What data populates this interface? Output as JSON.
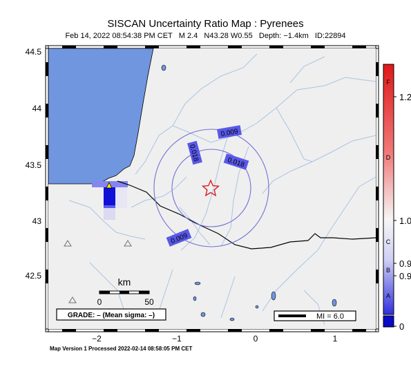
{
  "header": {
    "title": "SISCAN Uncertainty Ratio Map : Pyrenees",
    "subtitle": "Feb 14, 2022 08:54:38 PM CET   M 2.4   N43.28 W0.55   Depth: −1.4km   ID:22894"
  },
  "map": {
    "lat_labels": [
      "44.5",
      "44",
      "43.5",
      "43",
      "42.5"
    ],
    "lon_labels": [
      "−2",
      "−1",
      "0",
      "1"
    ],
    "contours": [
      {
        "label": "0.009"
      },
      {
        "label": "0.018"
      },
      {
        "label": "0.018"
      },
      {
        "label": "0.009"
      }
    ],
    "epicenter": {
      "symbol": "star",
      "color": "#d62020"
    },
    "scale_bar": {
      "unit": "km",
      "start": "0",
      "end": "50"
    },
    "grade_box": "GRADE: – (Mean sigma: –)",
    "mi_legend": "MI = 6.0"
  },
  "colorbar": {
    "letter_labels": [
      "F",
      "D",
      "C",
      "B",
      "A"
    ],
    "value_labels": [
      "1.2",
      "1.0",
      "0.9",
      "0.9",
      "0"
    ],
    "colors": {
      "top": "#e82020",
      "middle": "#f4f4f4",
      "bottom": "#1515d0"
    }
  },
  "footer": "Map Version 1 Processed 2022-02-14 08:58:05 PM CET",
  "colors": {
    "sea": "#7096e0",
    "land": "#efefef",
    "river": "#a9c4e2",
    "contour": "#7070d8",
    "contour_label_bg": "#5858e8"
  }
}
